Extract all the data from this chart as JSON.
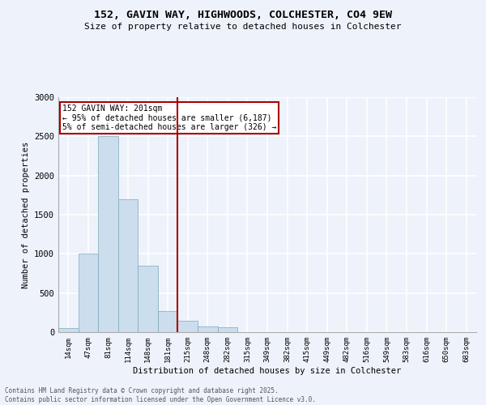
{
  "title_line1": "152, GAVIN WAY, HIGHWOODS, COLCHESTER, CO4 9EW",
  "title_line2": "Size of property relative to detached houses in Colchester",
  "xlabel": "Distribution of detached houses by size in Colchester",
  "ylabel": "Number of detached properties",
  "footer_line1": "Contains HM Land Registry data © Crown copyright and database right 2025.",
  "footer_line2": "Contains public sector information licensed under the Open Government Licence v3.0.",
  "categories": [
    "14sqm",
    "47sqm",
    "81sqm",
    "114sqm",
    "148sqm",
    "181sqm",
    "215sqm",
    "248sqm",
    "282sqm",
    "315sqm",
    "349sqm",
    "382sqm",
    "415sqm",
    "449sqm",
    "482sqm",
    "516sqm",
    "549sqm",
    "583sqm",
    "616sqm",
    "650sqm",
    "683sqm"
  ],
  "values": [
    50,
    1000,
    2500,
    1700,
    850,
    270,
    150,
    75,
    60,
    0,
    0,
    0,
    0,
    0,
    0,
    0,
    0,
    0,
    0,
    0,
    0
  ],
  "bar_color": "#ccdded",
  "bar_edge_color": "#7aaabb",
  "background_color": "#eef2fa",
  "grid_color": "#ffffff",
  "annotation_text": "152 GAVIN WAY: 201sqm\n← 95% of detached houses are smaller (6,187)\n5% of semi-detached houses are larger (326) →",
  "vline_x_index": 5.5,
  "vline_color": "#aa0000",
  "annotation_box_color": "#aa0000",
  "ylim": [
    0,
    3000
  ],
  "yticks": [
    0,
    500,
    1000,
    1500,
    2000,
    2500,
    3000
  ]
}
